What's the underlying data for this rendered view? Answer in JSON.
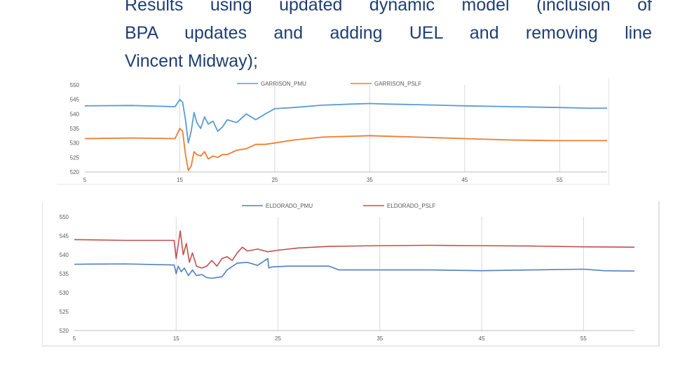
{
  "slide": {
    "heading_lines": [
      "Results using updated dynamic model (inclusion of",
      "BPA updates and adding UEL and removing line",
      "Vincent Midway);"
    ]
  },
  "colors": {
    "heading": "#1f3e73",
    "garrison_pmu": "#5b9bd5",
    "garrison_pslf": "#ed7d31",
    "eldorado_pmu": "#4f81bd",
    "eldorado_pslf": "#c0504d",
    "grid": "#d9d9d9",
    "axis_text": "#595959"
  },
  "chart_data": [
    {
      "type": "line",
      "title": "",
      "xlabel": "",
      "ylabel": "",
      "xlim": [
        5,
        60
      ],
      "ylim": [
        520,
        550
      ],
      "x_ticks": [
        5,
        15,
        25,
        35,
        45,
        55
      ],
      "y_ticks": [
        520,
        525,
        530,
        535,
        540,
        545,
        550
      ],
      "grid": "vertical",
      "legend": "top-center",
      "series": [
        {
          "name": "GARRISON_PMU",
          "color": "#5b9bd5",
          "x": [
            5,
            10,
            14.5,
            15,
            15.3,
            15.6,
            15.9,
            16.2,
            16.5,
            16.8,
            17.2,
            17.6,
            18.0,
            18.5,
            19.0,
            19.5,
            20.0,
            21.0,
            22.0,
            23.0,
            24.0,
            25.0,
            27.0,
            30.0,
            33.0,
            35.0,
            37.0,
            40.0,
            45.0,
            50.0,
            55.0,
            58.0,
            60.0
          ],
          "y": [
            542.8,
            542.9,
            542.5,
            545.0,
            544.0,
            538.0,
            530.0,
            534.0,
            540.5,
            537.0,
            535.0,
            539.0,
            536.5,
            537.5,
            534.0,
            535.5,
            538.0,
            537.0,
            540.0,
            538.0,
            540.0,
            541.8,
            542.2,
            543.0,
            543.4,
            543.6,
            543.4,
            543.2,
            542.8,
            542.5,
            542.2,
            542.0,
            542.0
          ]
        },
        {
          "name": "GARRISON_PSLF",
          "color": "#ed7d31",
          "x": [
            5,
            10,
            14.5,
            15,
            15.3,
            15.6,
            15.9,
            16.2,
            16.5,
            16.8,
            17.2,
            17.6,
            18.0,
            18.5,
            19.0,
            19.5,
            20.0,
            21.0,
            22.0,
            23.0,
            24.0,
            25.0,
            27.0,
            30.0,
            33.0,
            35.0,
            37.0,
            40.0,
            45.0,
            50.0,
            55.0,
            58.0,
            60.0
          ],
          "y": [
            531.5,
            531.7,
            531.5,
            535.0,
            534.0,
            526.0,
            520.5,
            522.0,
            527.0,
            526.0,
            525.5,
            527.0,
            524.5,
            525.5,
            525.0,
            526.0,
            526.0,
            527.5,
            528.0,
            529.5,
            529.5,
            530.0,
            531.0,
            532.0,
            532.3,
            532.5,
            532.3,
            532.0,
            531.5,
            531.0,
            530.8,
            530.8,
            530.8
          ]
        }
      ]
    },
    {
      "type": "line",
      "title": "",
      "xlabel": "",
      "ylabel": "",
      "xlim": [
        5,
        60
      ],
      "ylim": [
        520,
        550
      ],
      "x_ticks": [
        5,
        15,
        25,
        35,
        45,
        55
      ],
      "y_ticks": [
        520,
        525,
        530,
        535,
        540,
        545,
        550
      ],
      "grid": "vertical",
      "legend": "top-center",
      "series": [
        {
          "name": "ELDORADO_PMU",
          "color": "#4f81bd",
          "x": [
            5,
            10,
            14.8,
            15.0,
            15.2,
            15.5,
            15.8,
            16.2,
            16.6,
            17.0,
            17.5,
            18.0,
            18.5,
            19.0,
            19.5,
            20.0,
            21.0,
            22.0,
            23.0,
            24.0,
            24.1,
            24.4,
            26.0,
            30.0,
            31.0,
            35.0,
            40.0,
            45.0,
            50.0,
            55.0,
            57.0,
            60.0
          ],
          "y": [
            537.5,
            537.6,
            537.3,
            535.0,
            537.0,
            535.5,
            536.5,
            534.5,
            536.0,
            534.5,
            534.8,
            534.0,
            533.8,
            534.0,
            534.2,
            536.0,
            537.8,
            538.0,
            537.2,
            539.0,
            536.5,
            536.8,
            537.0,
            537.0,
            536.0,
            536.0,
            536.0,
            535.8,
            536.0,
            536.2,
            535.8,
            535.7
          ]
        },
        {
          "name": "ELDORADO_PSLF",
          "color": "#c0504d",
          "x": [
            5,
            10,
            14.8,
            15.0,
            15.4,
            15.7,
            16.0,
            16.3,
            16.6,
            17.0,
            17.5,
            18.0,
            18.5,
            19.0,
            19.5,
            20.0,
            20.5,
            21.0,
            21.5,
            22.0,
            23.0,
            24.0,
            25.0,
            27.0,
            30.0,
            35.0,
            40.0,
            45.0,
            50.0,
            55.0,
            60.0
          ],
          "y": [
            544.0,
            543.8,
            543.8,
            539.0,
            546.3,
            540.0,
            543.0,
            538.0,
            540.5,
            537.0,
            536.5,
            537.0,
            538.5,
            537.0,
            539.0,
            539.5,
            538.5,
            540.5,
            542.0,
            541.0,
            541.5,
            540.8,
            541.2,
            541.8,
            542.2,
            542.4,
            542.5,
            542.4,
            542.3,
            542.1,
            542.0
          ]
        }
      ]
    }
  ]
}
